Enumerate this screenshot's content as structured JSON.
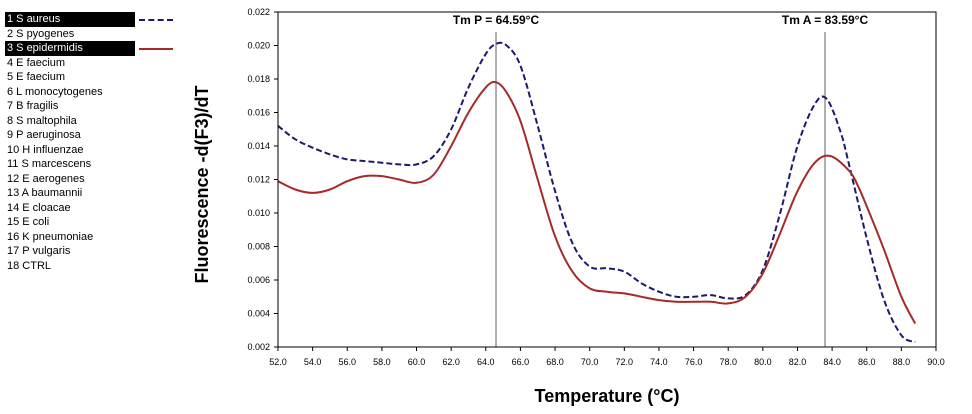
{
  "chart_data": {
    "type": "line",
    "xlabel": "Temperature (°C)",
    "ylabel": "Fluorescence -d(F3)/dT",
    "xlim": [
      52.0,
      90.0
    ],
    "ylim": [
      0.002,
      0.022
    ],
    "xticks": [
      "52.0",
      "54.0",
      "56.0",
      "58.0",
      "60.0",
      "62.0",
      "64.0",
      "66.0",
      "68.0",
      "70.0",
      "72.0",
      "74.0",
      "76.0",
      "78.0",
      "80.0",
      "82.0",
      "84.0",
      "86.0",
      "88.0",
      "90.0"
    ],
    "yticks": [
      "0.002",
      "0.004",
      "0.006",
      "0.008",
      "0.010",
      "0.012",
      "0.014",
      "0.016",
      "0.018",
      "0.020",
      "0.022"
    ],
    "markers": [
      {
        "label": "Tm P = 64.59°C",
        "x": 64.59
      },
      {
        "label": "Tm A = 83.59°C",
        "x": 83.59
      }
    ],
    "legend": [
      {
        "label": "1 S aureus",
        "selected": true,
        "line": "dashed",
        "color": "#1a1a6e"
      },
      {
        "label": "2 S pyogenes"
      },
      {
        "label": "3 S epidermidis",
        "selected": true,
        "line": "solid",
        "color": "#a52a2a"
      },
      {
        "label": "4 E faecium"
      },
      {
        "label": "5 E faecium"
      },
      {
        "label": "6 L monocytogenes"
      },
      {
        "label": "7 B fragilis"
      },
      {
        "label": "8 S maltophila"
      },
      {
        "label": "9 P aeruginosa"
      },
      {
        "label": "10 H influenzae"
      },
      {
        "label": "11 S marcescens"
      },
      {
        "label": "12 E aerogenes"
      },
      {
        "label": "13 A baumannii"
      },
      {
        "label": "14 E cloacae"
      },
      {
        "label": "15 E coli"
      },
      {
        "label": "16 K pneumoniae"
      },
      {
        "label": "17 P vulgaris"
      },
      {
        "label": "18 CTRL"
      }
    ],
    "series": [
      {
        "name": "1 S aureus",
        "color": "#1a1a6e",
        "dash": true,
        "points": [
          [
            52,
            0.0152
          ],
          [
            53,
            0.0144
          ],
          [
            54,
            0.0139
          ],
          [
            55,
            0.0135
          ],
          [
            56,
            0.0132
          ],
          [
            57,
            0.0131
          ],
          [
            58,
            0.013
          ],
          [
            59,
            0.0129
          ],
          [
            60,
            0.0129
          ],
          [
            61,
            0.0134
          ],
          [
            62,
            0.015
          ],
          [
            63,
            0.0175
          ],
          [
            64,
            0.0195
          ],
          [
            64.6,
            0.0201
          ],
          [
            65.2,
            0.02
          ],
          [
            66,
            0.0188
          ],
          [
            67,
            0.0152
          ],
          [
            68,
            0.0113
          ],
          [
            69,
            0.0082
          ],
          [
            70,
            0.0068
          ],
          [
            71,
            0.0067
          ],
          [
            72,
            0.0065
          ],
          [
            73,
            0.0058
          ],
          [
            74,
            0.0053
          ],
          [
            75,
            0.005
          ],
          [
            76,
            0.005
          ],
          [
            77,
            0.0051
          ],
          [
            78,
            0.0049
          ],
          [
            79,
            0.0051
          ],
          [
            80,
            0.0066
          ],
          [
            81,
            0.01
          ],
          [
            82,
            0.014
          ],
          [
            83,
            0.0165
          ],
          [
            83.7,
            0.0168
          ],
          [
            84.5,
            0.0148
          ],
          [
            85,
            0.0128
          ],
          [
            86,
            0.0085
          ],
          [
            87,
            0.0048
          ],
          [
            88,
            0.0027
          ],
          [
            88.8,
            0.0023
          ]
        ]
      },
      {
        "name": "3 S epidermidis",
        "color": "#a52a2a",
        "dash": false,
        "points": [
          [
            52,
            0.0119
          ],
          [
            53,
            0.0114
          ],
          [
            54,
            0.0112
          ],
          [
            55,
            0.0114
          ],
          [
            56,
            0.0119
          ],
          [
            57,
            0.0122
          ],
          [
            58,
            0.0122
          ],
          [
            59,
            0.012
          ],
          [
            60,
            0.0118
          ],
          [
            61,
            0.0123
          ],
          [
            62,
            0.014
          ],
          [
            63,
            0.016
          ],
          [
            64,
            0.0175
          ],
          [
            64.6,
            0.0178
          ],
          [
            65.2,
            0.0172
          ],
          [
            66,
            0.0155
          ],
          [
            67,
            0.012
          ],
          [
            68,
            0.0086
          ],
          [
            69,
            0.0065
          ],
          [
            70,
            0.0055
          ],
          [
            71,
            0.0053
          ],
          [
            72,
            0.0052
          ],
          [
            73,
            0.005
          ],
          [
            74,
            0.0048
          ],
          [
            75,
            0.0047
          ],
          [
            76,
            0.0047
          ],
          [
            77,
            0.0047
          ],
          [
            78,
            0.0046
          ],
          [
            79,
            0.005
          ],
          [
            80,
            0.0064
          ],
          [
            81,
            0.0088
          ],
          [
            82,
            0.0113
          ],
          [
            83,
            0.013
          ],
          [
            83.9,
            0.0134
          ],
          [
            85,
            0.0125
          ],
          [
            85.5,
            0.0116
          ],
          [
            86,
            0.0104
          ],
          [
            87,
            0.0078
          ],
          [
            88,
            0.005
          ],
          [
            88.8,
            0.0034
          ]
        ]
      }
    ]
  }
}
